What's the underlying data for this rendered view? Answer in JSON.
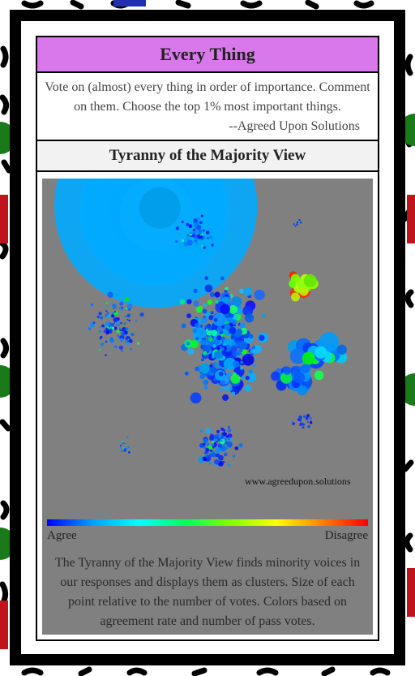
{
  "header": {
    "title": "Every Thing"
  },
  "intro": {
    "text": "Vote on (almost) every thing in order of importance. Comment on them. Choose the top 1% most important things.",
    "attribution": "--Agreed Upon Solutions"
  },
  "section": {
    "title": "Tyranny of the Majority View"
  },
  "visualization": {
    "watermark": "www.agreedupon.solutions",
    "scale_low": "Agree",
    "scale_high": "Disagree"
  },
  "caption": "The Tyranny of the Majority View finds minority voices in our responses and displays them as clusters. Size of each point relative to the number of votes. Colors based on agreement rate and number of pass votes."
}
